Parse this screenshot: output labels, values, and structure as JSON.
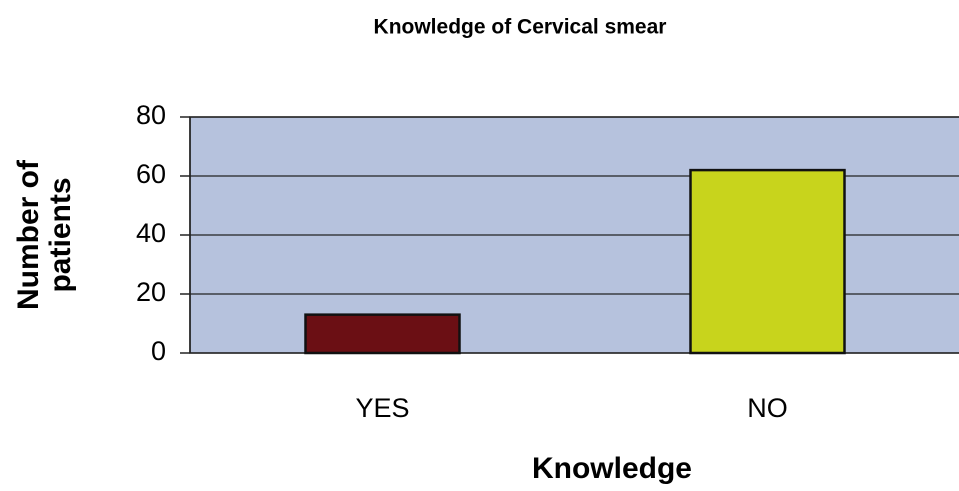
{
  "chart_data": {
    "type": "bar",
    "title": "Knowledge of Cervical smear",
    "y_label": [
      "Number of",
      "patients"
    ],
    "x_label": "Knowledge",
    "categories": [
      "YES",
      "NO"
    ],
    "values": [
      13,
      62
    ],
    "colors": [
      "#6b0f14",
      "#c8d41c"
    ],
    "plot_background": "#b6c2dd",
    "ylim": [
      0,
      80
    ],
    "yticks": [
      0,
      20,
      40,
      60,
      80
    ],
    "grid": true
  }
}
